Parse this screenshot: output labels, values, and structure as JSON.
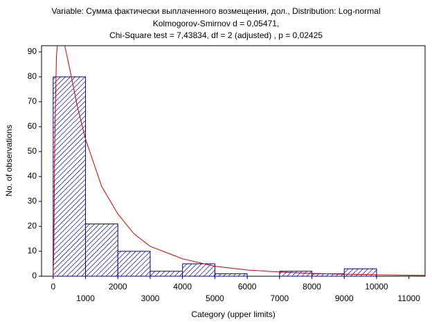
{
  "chart_data": {
    "type": "histogram",
    "title": "Variable: Сумма фактически выплаченного возмещения, дол., Distribution: Log-normal",
    "subtitle": [
      "Kolmogorov-Smirnov d = 0,05471,",
      "Chi-Square test = 7,43834, df = 2 (adjusted) , p = 0,02425"
    ],
    "x_label": "Category (upper limits)",
    "y_label": "No. of observations",
    "bins": [
      0,
      1000,
      2000,
      3000,
      4000,
      5000,
      6000,
      7000,
      8000,
      9000,
      10000,
      11000
    ],
    "values": [
      80,
      21,
      10,
      2,
      5,
      1,
      0,
      2,
      1,
      3,
      0
    ],
    "color": "#00008b",
    "fit": {
      "color": "#c00000",
      "x": [
        0,
        20,
        50,
        100,
        150,
        250,
        350,
        500,
        750,
        1000,
        1500,
        2000,
        2500,
        3000,
        4000,
        5000,
        6000,
        7000,
        8000,
        9000,
        10000,
        11000,
        11500
      ],
      "values": [
        0,
        10,
        55,
        88,
        96,
        97,
        93,
        84,
        68,
        55,
        36,
        25,
        17,
        12,
        7,
        4,
        2.5,
        1.7,
        1.1,
        0.8,
        0.6,
        0.4,
        0.35
      ]
    },
    "xlim": [
      -360,
      11500
    ],
    "ylim": [
      0,
      92.5
    ],
    "xticks": [
      0,
      1000,
      2000,
      3000,
      4000,
      5000,
      6000,
      7000,
      8000,
      9000,
      10000,
      11000
    ],
    "yticks": [
      0,
      10,
      20,
      30,
      40,
      50,
      60,
      70,
      80,
      90
    ]
  }
}
